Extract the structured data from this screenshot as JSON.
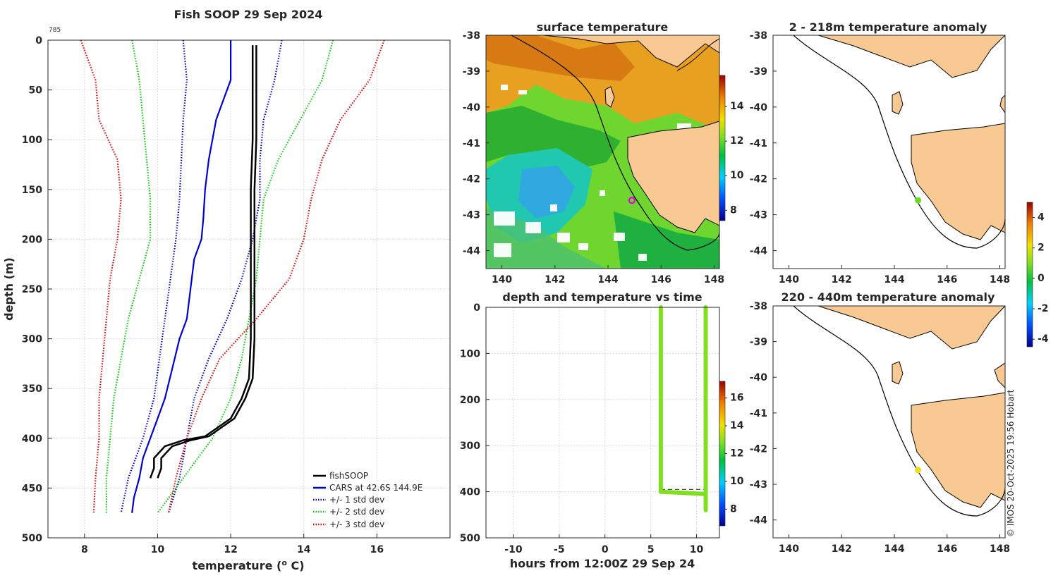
{
  "credit": "© IMOS 20-Oct-2025 19:56 Hobart",
  "chart_data": [
    {
      "type": "line",
      "id": "profile",
      "title": "Fish SOOP 29 Sep 2024",
      "corner_label": "785",
      "xlabel": "temperature (°C)",
      "xlabel_parts": {
        "pre": "temperature (",
        "sup": "o",
        "post": " C)"
      },
      "ylabel": "depth (m)",
      "xlim": [
        7,
        18
      ],
      "ylim": [
        500,
        0
      ],
      "xticks": [
        8,
        10,
        12,
        14,
        16
      ],
      "yticks": [
        0,
        50,
        100,
        150,
        200,
        250,
        300,
        350,
        400,
        450,
        500
      ],
      "grid": true,
      "legend_position": "bottom-right",
      "series": [
        {
          "name": "CARS at 42.6S 144.9E",
          "color": "#0000d6",
          "style": "solid",
          "depth": [
            0,
            20,
            40,
            60,
            80,
            100,
            120,
            150,
            180,
            200,
            220,
            250,
            280,
            300,
            330,
            360,
            380,
            400,
            420,
            440,
            460,
            475
          ],
          "temp": [
            12.0,
            12.0,
            12.0,
            11.8,
            11.6,
            11.5,
            11.4,
            11.3,
            11.25,
            11.2,
            11.0,
            10.9,
            10.8,
            10.6,
            10.4,
            10.2,
            10.0,
            9.8,
            9.6,
            9.5,
            9.35,
            9.3
          ]
        },
        {
          "name": "+/- 1 std dev",
          "color": "#0000d6",
          "style": "dotted",
          "depth": [
            0,
            40,
            80,
            120,
            160,
            200,
            240,
            280,
            320,
            360,
            400,
            440,
            475
          ],
          "temp": [
            10.7,
            10.8,
            10.7,
            10.65,
            10.6,
            10.5,
            10.35,
            10.2,
            10.05,
            9.9,
            9.6,
            9.2,
            9.0
          ],
          "temp_hi": [
            13.4,
            13.2,
            12.9,
            12.8,
            12.8,
            12.6,
            12.3,
            11.9,
            11.4,
            11.0,
            10.8,
            10.6,
            10.3
          ]
        },
        {
          "name": "+/- 2 std dev",
          "color": "#00d000",
          "style": "dotted",
          "depth": [
            0,
            40,
            80,
            120,
            160,
            200,
            240,
            280,
            320,
            360,
            400,
            440,
            475
          ],
          "temp": [
            9.3,
            9.5,
            9.6,
            9.7,
            9.8,
            9.8,
            9.5,
            9.2,
            9.0,
            8.8,
            8.7,
            8.6,
            8.6
          ],
          "temp_hi": [
            14.8,
            14.5,
            13.9,
            13.3,
            12.9,
            12.8,
            12.7,
            12.5,
            12.3,
            12.0,
            11.5,
            10.7,
            10.0
          ]
        },
        {
          "name": "+/- 3 std dev",
          "color": "#e60000",
          "style": "dotted",
          "depth": [
            0,
            40,
            80,
            120,
            160,
            200,
            240,
            280,
            320,
            360,
            400,
            440,
            475
          ],
          "temp": [
            7.9,
            8.3,
            8.4,
            8.9,
            9.0,
            8.9,
            8.7,
            8.6,
            8.5,
            8.4,
            8.4,
            8.3,
            8.25
          ],
          "temp_hi": [
            16.2,
            15.8,
            15.0,
            14.5,
            14.2,
            14.0,
            13.6,
            12.7,
            11.7,
            11.2,
            10.8,
            10.5,
            10.3
          ]
        },
        {
          "name": "fishSOOP",
          "color": "#000000",
          "style": "solid",
          "depth": [
            5,
            50,
            100,
            150,
            200,
            250,
            300,
            340,
            360,
            380,
            398,
            402,
            408,
            420,
            430,
            440
          ],
          "temp": [
            12.6,
            12.6,
            12.6,
            12.55,
            12.55,
            12.55,
            12.55,
            12.5,
            12.3,
            12.0,
            11.3,
            10.7,
            10.2,
            9.9,
            9.9,
            9.8
          ]
        }
      ]
    },
    {
      "type": "heatmap",
      "id": "surface_map",
      "title": "surface temperature",
      "xlim": [
        139.4,
        148.2
      ],
      "ylim": [
        -44.5,
        -38
      ],
      "xticks": [
        140,
        142,
        144,
        146,
        148
      ],
      "yticks": [
        -38,
        -39,
        -40,
        -41,
        -42,
        -43,
        -44
      ],
      "colorbar_ticks": [
        8,
        10,
        12,
        14
      ],
      "colorbar_range": [
        7.4,
        15.8
      ],
      "marker": {
        "lon": 144.9,
        "lat": -42.6,
        "color": "#e600e6"
      }
    },
    {
      "type": "scatter",
      "id": "depth_time",
      "title": "depth and temperature vs time",
      "xlabel": "hours from 12:00Z 29 Sep 24",
      "xlim": [
        -13,
        12.5
      ],
      "ylim": [
        500,
        0
      ],
      "xticks": [
        -10,
        -5,
        0,
        5,
        10
      ],
      "yticks": [
        0,
        100,
        200,
        300,
        400,
        500
      ],
      "colorbar_ticks": [
        8,
        10,
        12,
        14,
        16
      ],
      "colorbar_range": [
        6.8,
        17.2
      ],
      "dashed_line_depth": 395,
      "segments": [
        {
          "hours": [
            6.1,
            6.1
          ],
          "depth": [
            0,
            400
          ],
          "temp": 12.7
        },
        {
          "hours": [
            6.1,
            11
          ],
          "depth": [
            400,
            405
          ],
          "temp": 12.3
        },
        {
          "hours": [
            11,
            11
          ],
          "depth": [
            0,
            440
          ],
          "temp": 12.5
        }
      ]
    },
    {
      "type": "scatter",
      "id": "anom_shallow",
      "title": "2 - 218m temperature anomaly",
      "xlim": [
        139.4,
        148.2
      ],
      "ylim": [
        -44.5,
        -38
      ],
      "xticks": [
        140,
        142,
        144,
        146,
        148
      ],
      "yticks": [
        -38,
        -39,
        -40,
        -41,
        -42,
        -43,
        -44
      ],
      "point": {
        "lon": 144.9,
        "lat": -42.6,
        "anomaly": 0.4,
        "color": "#66dd22"
      }
    },
    {
      "type": "scatter",
      "id": "anom_deep",
      "title": "220 - 440m temperature anomaly",
      "xlim": [
        139.4,
        148.2
      ],
      "ylim": [
        -44.5,
        -38
      ],
      "xticks": [
        140,
        142,
        144,
        146,
        148
      ],
      "yticks": [
        -38,
        -39,
        -40,
        -41,
        -42,
        -43,
        -44
      ],
      "point": {
        "lon": 144.9,
        "lat": -42.6,
        "anomaly": 2.0,
        "color": "#eedd11"
      },
      "colorbar_ticks": [
        -4,
        -2,
        0,
        2,
        4
      ],
      "colorbar_range": [
        -4.5,
        5
      ]
    }
  ]
}
